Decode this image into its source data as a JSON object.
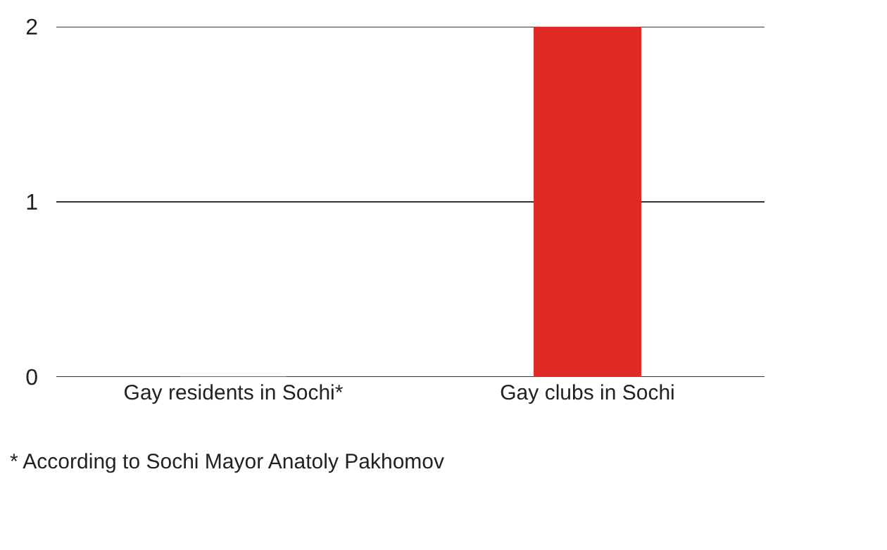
{
  "chart_data": {
    "type": "bar",
    "categories": [
      "Gay residents in Sochi*",
      "Gay clubs in Sochi"
    ],
    "values": [
      0,
      2
    ],
    "color": "#e02a26",
    "ylim": [
      0,
      2
    ],
    "yticks": [
      0,
      1,
      2
    ],
    "grid": "y",
    "legend": false,
    "annotations": [
      "* According to Sochi Mayor Anatoly Pakhomov"
    ]
  }
}
